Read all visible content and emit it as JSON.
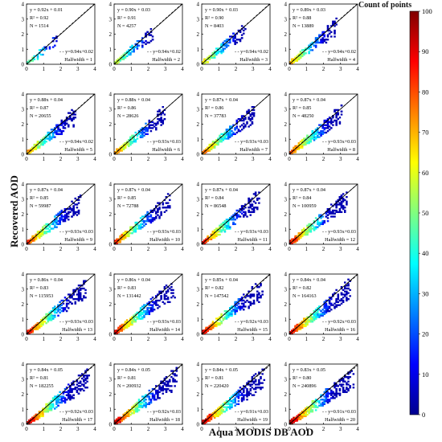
{
  "chart_data": {
    "type": "heatmap",
    "subtype": "density-scatter-small-multiples",
    "xlabel": "Aqua MODIS DB AOD",
    "ylabel": "Recovered AOD",
    "colorbar": {
      "title": "Count of points",
      "range": [
        0,
        100
      ],
      "ticks": [
        0,
        10,
        20,
        30,
        40,
        50,
        60,
        70,
        80,
        90,
        100
      ],
      "colormap": "jet"
    },
    "xlim": [
      0,
      4
    ],
    "ylim": [
      0,
      4
    ],
    "xticks": [
      0,
      1,
      2,
      3,
      4
    ],
    "yticks": [
      0,
      1,
      2,
      3,
      4
    ],
    "ee_line": "y=0.94x+0.02 style dashed envelope",
    "panels": [
      {
        "fit": "y = 0.92x + 0.01",
        "r2": "R² = 0.92",
        "n": "N = 1514",
        "ee": "y=0.94x+0.02",
        "halfwidth": "Halfwidth = 1",
        "slope": 0.92,
        "intercept": 0.01,
        "ee_slope": 0.94,
        "ee_intercept": 0.02
      },
      {
        "fit": "y = 0.90x + 0.03",
        "r2": "R² = 0.91",
        "n": "N = 4257",
        "ee": "y=0.94x+0.02",
        "halfwidth": "Halfwidth = 2",
        "slope": 0.9,
        "intercept": 0.03,
        "ee_slope": 0.94,
        "ee_intercept": 0.02
      },
      {
        "fit": "y = 0.90x + 0.03",
        "r2": "R² = 0.90",
        "n": "N = 8403",
        "ee": "y=0.94x+0.02",
        "halfwidth": "Halfwidth = 3",
        "slope": 0.9,
        "intercept": 0.03,
        "ee_slope": 0.94,
        "ee_intercept": 0.02
      },
      {
        "fit": "y = 0.89x + 0.03",
        "r2": "R² = 0.88",
        "n": "N = 13889",
        "ee": "y=0.94x+0.02",
        "halfwidth": "Halfwidth = 4",
        "slope": 0.89,
        "intercept": 0.03,
        "ee_slope": 0.94,
        "ee_intercept": 0.02
      },
      {
        "fit": "y = 0.88x + 0.04",
        "r2": "R² = 0.87",
        "n": "N = 20655",
        "ee": "y=0.94x+0.02",
        "halfwidth": "Halfwidth = 5",
        "slope": 0.88,
        "intercept": 0.04,
        "ee_slope": 0.94,
        "ee_intercept": 0.02
      },
      {
        "fit": "y = 0.88x + 0.04",
        "r2": "R² = 0.86",
        "n": "N = 28626",
        "ee": "y=0.93x+0.03",
        "halfwidth": "Halfwidth = 6",
        "slope": 0.88,
        "intercept": 0.04,
        "ee_slope": 0.93,
        "ee_intercept": 0.03
      },
      {
        "fit": "y = 0.87x + 0.04",
        "r2": "R² = 0.86",
        "n": "N = 37783",
        "ee": "y=0.93x+0.03",
        "halfwidth": "Halfwidth = 7",
        "slope": 0.87,
        "intercept": 0.04,
        "ee_slope": 0.93,
        "ee_intercept": 0.03
      },
      {
        "fit": "y = 0.87x + 0.04",
        "r2": "R² = 0.85",
        "n": "N = 48250",
        "ee": "y=0.93x+0.03",
        "halfwidth": "Halfwidth = 8",
        "slope": 0.87,
        "intercept": 0.04,
        "ee_slope": 0.93,
        "ee_intercept": 0.03
      },
      {
        "fit": "y = 0.87x + 0.04",
        "r2": "R² = 0.85",
        "n": "N = 59987",
        "ee": "y=0.93x+0.03",
        "halfwidth": "Halfwidth = 9",
        "slope": 0.87,
        "intercept": 0.04,
        "ee_slope": 0.93,
        "ee_intercept": 0.03
      },
      {
        "fit": "y = 0.87x + 0.04",
        "r2": "R² = 0.85",
        "n": "N = 72788",
        "ee": "y=0.93x+0.03",
        "halfwidth": "Halfwidth = 10",
        "slope": 0.87,
        "intercept": 0.04,
        "ee_slope": 0.93,
        "ee_intercept": 0.03
      },
      {
        "fit": "y = 0.87x + 0.04",
        "r2": "R² = 0.84",
        "n": "N = 86548",
        "ee": "y=0.93x+0.03",
        "halfwidth": "Halfwidth = 11",
        "slope": 0.87,
        "intercept": 0.04,
        "ee_slope": 0.93,
        "ee_intercept": 0.03
      },
      {
        "fit": "y = 0.87x + 0.04",
        "r2": "R² = 0.84",
        "n": "N = 100959",
        "ee": "y=0.93x+0.03",
        "halfwidth": "Halfwidth = 12",
        "slope": 0.87,
        "intercept": 0.04,
        "ee_slope": 0.93,
        "ee_intercept": 0.03
      },
      {
        "fit": "y = 0.86x + 0.04",
        "r2": "R² = 0.83",
        "n": "N = 115953",
        "ee": "y=0.93x+0.03",
        "halfwidth": "Halfwidth = 13",
        "slope": 0.86,
        "intercept": 0.04,
        "ee_slope": 0.93,
        "ee_intercept": 0.03
      },
      {
        "fit": "y = 0.86x + 0.04",
        "r2": "R² = 0.83",
        "n": "N = 131442",
        "ee": "y=0.93x+0.03",
        "halfwidth": "Halfwidth = 14",
        "slope": 0.86,
        "intercept": 0.04,
        "ee_slope": 0.93,
        "ee_intercept": 0.03
      },
      {
        "fit": "y = 0.85x + 0.04",
        "r2": "R² = 0.82",
        "n": "N = 147542",
        "ee": "y=0.92x+0.03",
        "halfwidth": "Halfwidth = 15",
        "slope": 0.85,
        "intercept": 0.04,
        "ee_slope": 0.92,
        "ee_intercept": 0.03
      },
      {
        "fit": "y = 0.84x + 0.04",
        "r2": "R² = 0.82",
        "n": "N = 164163",
        "ee": "y=0.92x+0.03",
        "halfwidth": "Halfwidth = 16",
        "slope": 0.84,
        "intercept": 0.04,
        "ee_slope": 0.92,
        "ee_intercept": 0.03
      },
      {
        "fit": "y = 0.84x + 0.05",
        "r2": "R² = 0.81",
        "n": "N = 182255",
        "ee": "y=0.92x+0.03",
        "halfwidth": "Halfwidth = 17",
        "slope": 0.84,
        "intercept": 0.05,
        "ee_slope": 0.92,
        "ee_intercept": 0.03
      },
      {
        "fit": "y = 0.84x + 0.05",
        "r2": "R² = 0.81",
        "n": "N = 200932",
        "ee": "y=0.92x+0.03",
        "halfwidth": "Halfwidth = 18",
        "slope": 0.84,
        "intercept": 0.05,
        "ee_slope": 0.92,
        "ee_intercept": 0.03
      },
      {
        "fit": "y = 0.84x + 0.05",
        "r2": "R² = 0.81",
        "n": "N = 220420",
        "ee": "y=0.91x+0.03",
        "halfwidth": "Halfwidth = 19",
        "slope": 0.84,
        "intercept": 0.05,
        "ee_slope": 0.91,
        "ee_intercept": 0.03
      },
      {
        "fit": "y = 0.83x + 0.05",
        "r2": "R² = 0.80",
        "n": "N = 240896",
        "ee": "y=0.91x+0.03",
        "halfwidth": "Halfwidth = 20",
        "slope": 0.83,
        "intercept": 0.05,
        "ee_slope": 0.91,
        "ee_intercept": 0.03
      }
    ]
  }
}
